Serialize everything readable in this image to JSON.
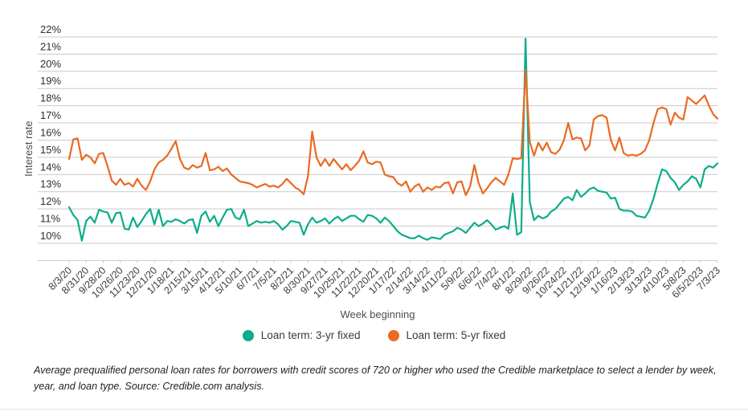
{
  "accent_colors": {
    "teal": "#0cad8c",
    "orange": "#ea6a22",
    "gridline": "#c9c9c9",
    "axis_text": "#3d3d3d"
  },
  "chart_data": {
    "type": "line",
    "title": "",
    "xlabel": "Week beginning",
    "ylabel": "Interest rate",
    "grid": "horizontal",
    "legend_position": "bottom",
    "ylim": [
      9,
      22.3
    ],
    "y_ticks": [
      10,
      11,
      12,
      13,
      14,
      15,
      16,
      17,
      18,
      19,
      20,
      21,
      22
    ],
    "y_tick_suffix": "%",
    "x_tick_every_n_points": 4,
    "x_tick_labels": [
      "8/3/20",
      "8/31/20",
      "9/28/20",
      "10/26/20",
      "11/23/20",
      "12/21/20",
      "1/18/21",
      "2/15/21",
      "3/15/21",
      "4/12/21",
      "5/10/21",
      "6/7/21",
      "7/5/21",
      "8/2/21",
      "8/30/21",
      "9/27/21",
      "10/25/21",
      "11/22/21",
      "12/20/21",
      "1/17/22",
      "2/14/22",
      "3/14/22",
      "4/11/22",
      "5/9/22",
      "6/6/22",
      "7/4/22",
      "8/1/22",
      "8/29/22",
      "9/26/22",
      "10/24/22",
      "11/21/22",
      "12/19/22",
      "1/16/23",
      "2/13/23",
      "3/13/23",
      "4/10/23",
      "5/8/23",
      "6/5/2023",
      "7/3/23"
    ],
    "series": [
      {
        "name": "Loan term: 3-yr fixed",
        "color": "#0cad8c",
        "values": [
          12.1,
          11.65,
          11.35,
          10.15,
          11.3,
          11.55,
          11.2,
          11.95,
          11.85,
          11.8,
          11.2,
          11.75,
          11.8,
          10.85,
          10.8,
          11.5,
          10.95,
          11.3,
          11.7,
          12.0,
          11.1,
          11.95,
          11.0,
          11.3,
          11.25,
          11.4,
          11.3,
          11.15,
          11.35,
          11.4,
          10.6,
          11.6,
          11.85,
          11.25,
          11.6,
          11.0,
          11.5,
          11.95,
          12.0,
          11.5,
          11.4,
          11.95,
          11.0,
          11.15,
          11.3,
          11.2,
          11.25,
          11.2,
          11.3,
          11.1,
          10.8,
          11.0,
          11.3,
          11.25,
          11.2,
          10.5,
          11.1,
          11.5,
          11.2,
          11.3,
          11.45,
          11.15,
          11.4,
          11.55,
          11.3,
          11.45,
          11.6,
          11.6,
          11.4,
          11.25,
          11.65,
          11.6,
          11.45,
          11.2,
          11.5,
          11.3,
          11.0,
          10.7,
          10.5,
          10.4,
          10.3,
          10.3,
          10.45,
          10.3,
          10.2,
          10.35,
          10.3,
          10.25,
          10.5,
          10.6,
          10.7,
          10.9,
          10.8,
          10.6,
          10.9,
          11.2,
          11.0,
          11.15,
          11.35,
          11.1,
          10.8,
          10.9,
          11.0,
          10.85,
          12.9,
          10.5,
          10.65,
          21.9,
          12.4,
          11.35,
          11.6,
          11.45,
          11.55,
          11.85,
          12.0,
          12.3,
          12.6,
          12.7,
          12.5,
          13.1,
          12.7,
          12.9,
          13.15,
          13.25,
          13.05,
          13.0,
          12.95,
          12.6,
          12.65,
          12.0,
          11.9,
          11.9,
          11.85,
          11.6,
          11.55,
          11.5,
          11.9,
          12.6,
          13.5,
          14.3,
          14.2,
          13.8,
          13.55,
          13.1,
          13.4,
          13.6,
          13.9,
          13.75,
          13.25,
          14.3,
          14.5,
          14.4,
          14.65
        ]
      },
      {
        "name": "Loan term: 5-yr fixed",
        "color": "#ea6a22",
        "values": [
          14.9,
          16.05,
          16.1,
          14.85,
          15.15,
          15.0,
          14.65,
          15.2,
          15.25,
          14.5,
          13.65,
          13.4,
          13.75,
          13.4,
          13.5,
          13.3,
          13.75,
          13.35,
          13.1,
          13.6,
          14.3,
          14.7,
          14.85,
          15.1,
          15.5,
          15.95,
          14.9,
          14.4,
          14.3,
          14.55,
          14.4,
          14.5,
          15.25,
          14.25,
          14.3,
          14.45,
          14.2,
          14.35,
          14.0,
          13.8,
          13.6,
          13.55,
          13.5,
          13.4,
          13.25,
          13.35,
          13.45,
          13.3,
          13.35,
          13.25,
          13.45,
          13.75,
          13.5,
          13.25,
          13.1,
          12.85,
          13.9,
          16.5,
          15.0,
          14.5,
          14.9,
          14.5,
          14.9,
          14.6,
          14.3,
          14.6,
          14.25,
          14.5,
          14.8,
          15.35,
          14.7,
          14.6,
          14.75,
          14.7,
          14.0,
          13.9,
          13.85,
          13.5,
          13.35,
          13.6,
          13.0,
          13.3,
          13.45,
          13.0,
          13.25,
          13.1,
          13.3,
          13.25,
          13.5,
          13.55,
          12.9,
          13.55,
          13.6,
          12.8,
          13.3,
          14.55,
          13.5,
          12.9,
          13.2,
          13.55,
          13.8,
          13.6,
          13.4,
          14.0,
          14.95,
          14.9,
          14.95,
          20.1,
          15.9,
          15.1,
          15.85,
          15.4,
          15.85,
          15.3,
          15.2,
          15.45,
          16.0,
          17.0,
          16.05,
          16.15,
          16.1,
          15.4,
          15.7,
          17.2,
          17.4,
          17.45,
          17.3,
          16.0,
          15.4,
          16.15,
          15.25,
          15.1,
          15.15,
          15.1,
          15.2,
          15.4,
          16.0,
          17.0,
          17.8,
          17.9,
          17.8,
          16.9,
          17.6,
          17.3,
          17.2,
          18.5,
          18.3,
          18.1,
          18.35,
          18.6,
          18.0,
          17.5,
          17.25
        ]
      }
    ]
  },
  "legend": {
    "items": [
      {
        "label": "Loan term: 3-yr fixed",
        "color": "#0cad8c"
      },
      {
        "label": "Loan term: 5-yr fixed",
        "color": "#ea6a22"
      }
    ]
  },
  "caption": {
    "text": "Average prequalified personal loan rates for borrowers with credit scores of 720 or higher who used the Credible marketplace to select a lender by week, year, and loan type. Source: Credible.com analysis."
  }
}
